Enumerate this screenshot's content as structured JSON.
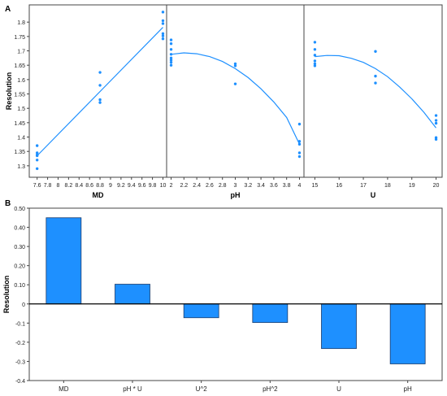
{
  "chart_data": [
    {
      "panel_label": "A",
      "type": "scatter",
      "ylabel": "Resolution",
      "ylim": [
        1.26,
        1.86
      ],
      "y_ticks": [
        1.3,
        1.35,
        1.4,
        1.45,
        1.5,
        1.55,
        1.6,
        1.65,
        1.7,
        1.75,
        1.8
      ],
      "grid": false,
      "color": "#1e90ff",
      "subpanels": [
        {
          "xlabel": "MD",
          "xlim": [
            7.45,
            10.07
          ],
          "x_ticks": [
            7.6,
            7.8,
            8,
            8.2,
            8.4,
            8.6,
            8.8,
            9,
            9.2,
            9.4,
            9.6,
            9.8,
            10
          ],
          "points": [
            [
              7.6,
              1.37
            ],
            [
              7.6,
              1.345
            ],
            [
              7.6,
              1.338
            ],
            [
              7.6,
              1.335
            ],
            [
              7.6,
              1.32
            ],
            [
              7.6,
              1.29
            ],
            [
              8.8,
              1.625
            ],
            [
              8.8,
              1.58
            ],
            [
              8.8,
              1.53
            ],
            [
              8.8,
              1.52
            ],
            [
              10,
              1.835
            ],
            [
              10,
              1.805
            ],
            [
              10,
              1.795
            ],
            [
              10,
              1.76
            ],
            [
              10,
              1.752
            ],
            [
              10,
              1.742
            ]
          ],
          "fit": [
            [
              7.6,
              1.335
            ],
            [
              10,
              1.782
            ]
          ]
        },
        {
          "xlabel": "pH",
          "xlim": [
            1.93,
            4.07
          ],
          "x_ticks": [
            2,
            2.2,
            2.4,
            2.6,
            2.8,
            3,
            3.2,
            3.4,
            3.6,
            3.8,
            4
          ],
          "points": [
            [
              2,
              1.738
            ],
            [
              2,
              1.725
            ],
            [
              2,
              1.705
            ],
            [
              2,
              1.688
            ],
            [
              2,
              1.675
            ],
            [
              2,
              1.668
            ],
            [
              2,
              1.66
            ],
            [
              2,
              1.65
            ],
            [
              3,
              1.655
            ],
            [
              3,
              1.648
            ],
            [
              3,
              1.585
            ],
            [
              4,
              1.445
            ],
            [
              4,
              1.385
            ],
            [
              4,
              1.375
            ],
            [
              4,
              1.345
            ],
            [
              4,
              1.332
            ]
          ],
          "fit": [
            [
              2,
              1.688
            ],
            [
              2.2,
              1.693
            ],
            [
              2.4,
              1.69
            ],
            [
              2.6,
              1.68
            ],
            [
              2.8,
              1.663
            ],
            [
              3,
              1.638
            ],
            [
              3.2,
              1.607
            ],
            [
              3.4,
              1.568
            ],
            [
              3.6,
              1.522
            ],
            [
              3.8,
              1.468
            ],
            [
              4,
              1.375
            ]
          ]
        },
        {
          "xlabel": "U",
          "xlim": [
            14.55,
            20.25
          ],
          "x_ticks": [
            15,
            16,
            17,
            18,
            19,
            20
          ],
          "points": [
            [
              15,
              1.73
            ],
            [
              15,
              1.705
            ],
            [
              15,
              1.685
            ],
            [
              15,
              1.665
            ],
            [
              15,
              1.655
            ],
            [
              15,
              1.648
            ],
            [
              17.5,
              1.698
            ],
            [
              17.5,
              1.612
            ],
            [
              17.5,
              1.588
            ],
            [
              20,
              1.475
            ],
            [
              20,
              1.458
            ],
            [
              20,
              1.448
            ],
            [
              20,
              1.398
            ],
            [
              20,
              1.392
            ]
          ],
          "fit": [
            [
              15,
              1.68
            ],
            [
              15.5,
              1.684
            ],
            [
              16,
              1.683
            ],
            [
              16.5,
              1.674
            ],
            [
              17,
              1.66
            ],
            [
              17.5,
              1.638
            ],
            [
              18,
              1.61
            ],
            [
              18.5,
              1.574
            ],
            [
              19,
              1.533
            ],
            [
              19.5,
              1.486
            ],
            [
              20,
              1.432
            ]
          ]
        }
      ]
    },
    {
      "panel_label": "B",
      "type": "bar",
      "ylabel": "Resolution",
      "ylim": [
        -0.4,
        0.5
      ],
      "y_ticks": [
        "-0.4",
        "-0.3",
        "-0.2",
        "-0.1",
        "0",
        "0.10",
        "0.20",
        "0.30",
        "0.40",
        "0.50"
      ],
      "categories": [
        "MD",
        "pH * U",
        "U^2",
        "pH^2",
        "U",
        "pH"
      ],
      "values": [
        0.45,
        0.103,
        -0.072,
        -0.097,
        -0.233,
        -0.313
      ],
      "color": "#1e90ff",
      "grid": false
    }
  ]
}
